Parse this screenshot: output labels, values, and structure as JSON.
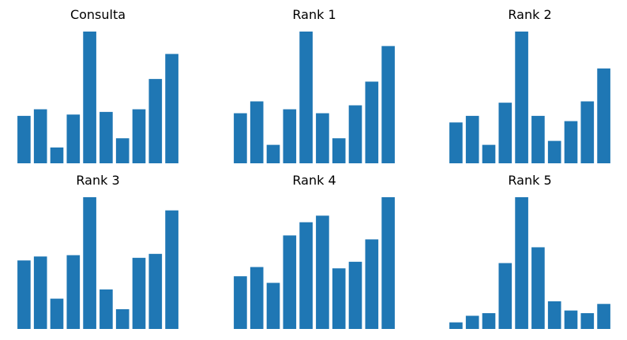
{
  "colors": {
    "bar": "#1f77b4",
    "background": "#ffffff",
    "title": "#000000"
  },
  "chart_data": [
    {
      "type": "bar",
      "title": "Consulta",
      "axes_visible": false,
      "grid": false,
      "values": [
        0.36,
        0.41,
        0.12,
        0.37,
        1.0,
        0.39,
        0.19,
        0.41,
        0.64,
        0.83
      ]
    },
    {
      "type": "bar",
      "title": "Rank 1",
      "axes_visible": false,
      "grid": false,
      "values": [
        0.38,
        0.47,
        0.14,
        0.41,
        1.0,
        0.38,
        0.19,
        0.44,
        0.62,
        0.89
      ]
    },
    {
      "type": "bar",
      "title": "Rank 2",
      "axes_visible": false,
      "grid": false,
      "values": [
        0.31,
        0.36,
        0.14,
        0.46,
        1.0,
        0.36,
        0.17,
        0.32,
        0.47,
        0.72
      ]
    },
    {
      "type": "bar",
      "title": "Rank 3",
      "axes_visible": false,
      "grid": false,
      "values": [
        0.52,
        0.55,
        0.23,
        0.56,
        1.0,
        0.3,
        0.15,
        0.54,
        0.57,
        0.9
      ]
    },
    {
      "type": "bar",
      "title": "Rank 4",
      "axes_visible": false,
      "grid": false,
      "values": [
        0.4,
        0.47,
        0.35,
        0.71,
        0.81,
        0.86,
        0.46,
        0.51,
        0.68,
        1.0
      ]
    },
    {
      "type": "bar",
      "title": "Rank 5",
      "axes_visible": false,
      "grid": false,
      "values": [
        0.05,
        0.1,
        0.12,
        0.5,
        1.0,
        0.62,
        0.21,
        0.14,
        0.12,
        0.19
      ]
    }
  ]
}
